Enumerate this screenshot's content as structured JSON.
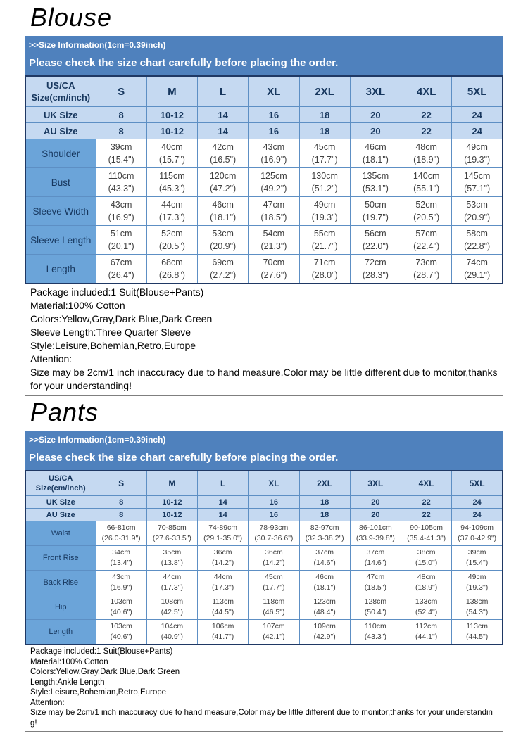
{
  "colors": {
    "banner_bg": "#4f81bd",
    "header_row_bg": "#c5d9f1",
    "label_cell_bg": "#6ba4d9",
    "outer_border": "#1f3864",
    "inner_border": "#5d8fc4",
    "header_text": "#17375e",
    "cell_text": "#3f3f3f"
  },
  "blouse": {
    "title": "Blouse",
    "banner": {
      "line1": ">>Size Information(1cm=0.39inch)",
      "line2": "Please check the size chart carefully before placing the order."
    },
    "table": {
      "corner_line1": "US/CA",
      "corner_line2": "Size(cm/inch)",
      "sizes": [
        "S",
        "M",
        "L",
        "XL",
        "2XL",
        "3XL",
        "4XL",
        "5XL"
      ],
      "simple_rows": [
        {
          "label": "UK Size",
          "values": [
            "8",
            "10-12",
            "14",
            "16",
            "18",
            "20",
            "22",
            "24"
          ]
        },
        {
          "label": "AU Size",
          "values": [
            "8",
            "10-12",
            "14",
            "16",
            "18",
            "20",
            "22",
            "24"
          ]
        }
      ],
      "measure_rows": [
        {
          "label": "Shoulder",
          "cm": [
            "39cm",
            "40cm",
            "42cm",
            "43cm",
            "45cm",
            "46cm",
            "48cm",
            "49cm"
          ],
          "inch": [
            "(15.4\")",
            "(15.7\")",
            "(16.5\")",
            "(16.9\")",
            "(17.7\")",
            "(18.1\")",
            "(18.9\")",
            "(19.3\")"
          ]
        },
        {
          "label": "Bust",
          "cm": [
            "110cm",
            "115cm",
            "120cm",
            "125cm",
            "130cm",
            "135cm",
            "140cm",
            "145cm"
          ],
          "inch": [
            "(43.3\")",
            "(45.3\")",
            "(47.2\")",
            "(49.2\")",
            "(51.2\")",
            "(53.1\")",
            "(55.1\")",
            "(57.1\")"
          ]
        },
        {
          "label": "Sleeve Width",
          "cm": [
            "43cm",
            "44cm",
            "46cm",
            "47cm",
            "49cm",
            "50cm",
            "52cm",
            "53cm"
          ],
          "inch": [
            "(16.9\")",
            "(17.3\")",
            "(18.1\")",
            "(18.5\")",
            "(19.3\")",
            "(19.7\")",
            "(20.5\")",
            "(20.9\")"
          ]
        },
        {
          "label": "Sleeve Length",
          "cm": [
            "51cm",
            "52cm",
            "53cm",
            "54cm",
            "55cm",
            "56cm",
            "57cm",
            "58cm"
          ],
          "inch": [
            "(20.1\")",
            "(20.5\")",
            "(20.9\")",
            "(21.3\")",
            "(21.7\")",
            "(22.0\")",
            "(22.4\")",
            "(22.8\")"
          ]
        },
        {
          "label": "Length",
          "cm": [
            "67cm",
            "68cm",
            "69cm",
            "70cm",
            "71cm",
            "72cm",
            "73cm",
            "74cm"
          ],
          "inch": [
            "(26.4\")",
            "(26.8\")",
            "(27.2\")",
            "(27.6\")",
            "(28.0\")",
            "(28.3\")",
            "(28.7\")",
            "(29.1\")"
          ]
        }
      ]
    },
    "notes": [
      "Package included:1 Suit(Blouse+Pants)",
      "Material:100% Cotton",
      "Colors:Yellow,Gray,Dark Blue,Dark Green",
      "Sleeve Length:Three Quarter Sleeve",
      "Style:Leisure,Bohemian,Retro,Europe",
      "Attention:",
      "Size may be 2cm/1 inch inaccuracy due to hand measure,Color may be little different due to monitor,thanks for your understanding!"
    ]
  },
  "pants": {
    "title": "Pants",
    "banner": {
      "line1": ">>Size Information(1cm=0.39inch)",
      "line2": "Please check the size chart carefully before placing the order."
    },
    "table": {
      "corner_line1": "US/CA",
      "corner_line2": "Size(cm/inch)",
      "sizes": [
        "S",
        "M",
        "L",
        "XL",
        "2XL",
        "3XL",
        "4XL",
        "5XL"
      ],
      "simple_rows": [
        {
          "label": "UK Size",
          "values": [
            "8",
            "10-12",
            "14",
            "16",
            "18",
            "20",
            "22",
            "24"
          ]
        },
        {
          "label": "AU Size",
          "values": [
            "8",
            "10-12",
            "14",
            "16",
            "18",
            "20",
            "22",
            "24"
          ]
        }
      ],
      "measure_rows": [
        {
          "label": "Waist",
          "cm": [
            "66-81cm",
            "70-85cm",
            "74-89cm",
            "78-93cm",
            "82-97cm",
            "86-101cm",
            "90-105cm",
            "94-109cm"
          ],
          "inch": [
            "(26.0-31.9\")",
            "(27.6-33.5\")",
            "(29.1-35.0\")",
            "(30.7-36.6\")",
            "(32.3-38.2\")",
            "(33.9-39.8\")",
            "(35.4-41.3\")",
            "(37.0-42.9\")"
          ]
        },
        {
          "label": "Front Rise",
          "cm": [
            "34cm",
            "35cm",
            "36cm",
            "36cm",
            "37cm",
            "37cm",
            "38cm",
            "39cm"
          ],
          "inch": [
            "(13.4\")",
            "(13.8\")",
            "(14.2\")",
            "(14.2\")",
            "(14.6\")",
            "(14.6\")",
            "(15.0\")",
            "(15.4\")"
          ]
        },
        {
          "label": "Back Rise",
          "cm": [
            "43cm",
            "44cm",
            "44cm",
            "45cm",
            "46cm",
            "47cm",
            "48cm",
            "49cm"
          ],
          "inch": [
            "(16.9\")",
            "(17.3\")",
            "(17.3\")",
            "(17.7\")",
            "(18.1\")",
            "(18.5\")",
            "(18.9\")",
            "(19.3\")"
          ]
        },
        {
          "label": "Hip",
          "cm": [
            "103cm",
            "108cm",
            "113cm",
            "118cm",
            "123cm",
            "128cm",
            "133cm",
            "138cm"
          ],
          "inch": [
            "(40.6\")",
            "(42.5\")",
            "(44.5\")",
            "(46.5\")",
            "(48.4\")",
            "(50.4\")",
            "(52.4\")",
            "(54.3\")"
          ]
        },
        {
          "label": "Length",
          "cm": [
            "103cm",
            "104cm",
            "106cm",
            "107cm",
            "109cm",
            "110cm",
            "112cm",
            "113cm"
          ],
          "inch": [
            "(40.6\")",
            "(40.9\")",
            "(41.7\")",
            "(42.1\")",
            "(42.9\")",
            "(43.3\")",
            "(44.1\")",
            "(44.5\")"
          ]
        }
      ]
    },
    "notes": [
      "Package included:1 Suit(Blouse+Pants)",
      "Material:100% Cotton",
      "Colors:Yellow,Gray,Dark Blue,Dark Green",
      "Length:Ankle Length",
      "Style:Leisure,Bohemian,Retro,Europe",
      "Attention:",
      "Size may be 2cm/1 inch inaccuracy due to hand measure,Color may be little different due to monitor,thanks for your understanding!"
    ]
  }
}
